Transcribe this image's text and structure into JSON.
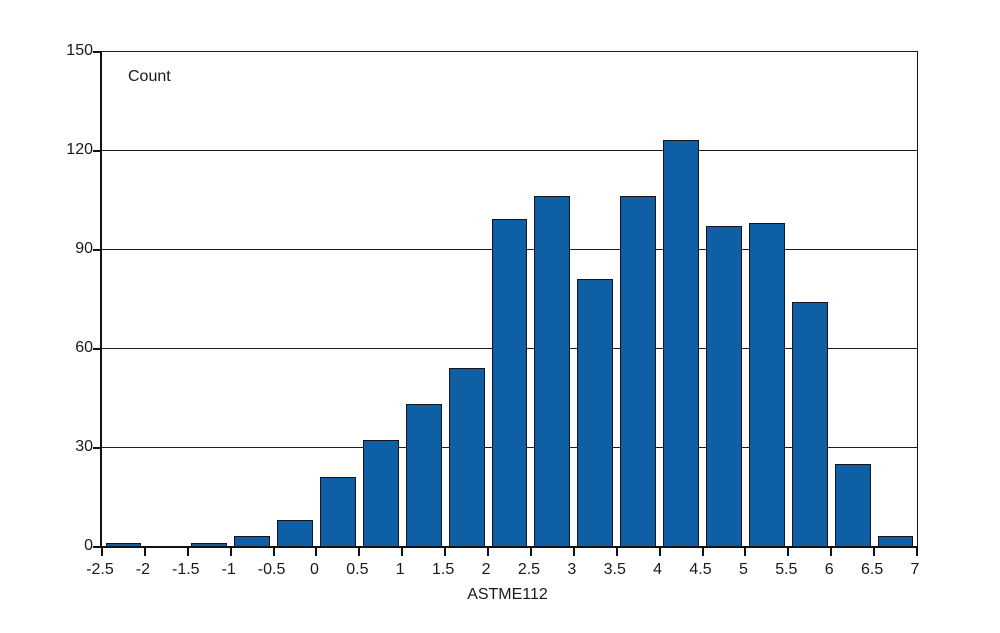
{
  "chart_data": {
    "type": "bar",
    "subtype": "histogram",
    "inner_label": "Count",
    "xlabel": "ASTME112",
    "ylabel": "Count",
    "xlim": [
      -2.5,
      7
    ],
    "ylim": [
      0,
      150
    ],
    "bin_width": 0.5,
    "categories": [
      "-2.5 to -2",
      "-2 to -1.5",
      "-1.5 to -1",
      "-1 to -0.5",
      "-0.5 to 0",
      "0 to 0.5",
      "0.5 to 1",
      "1 to 1.5",
      "1.5 to 2",
      "2 to 2.5",
      "2.5 to 3",
      "3 to 3.5",
      "3.5 to 4",
      "4 to 4.5",
      "4.5 to 5",
      "5 to 5.5",
      "5.5 to 6",
      "6 to 6.5",
      "6.5 to 7"
    ],
    "bin_left_edges": [
      -2.5,
      -2,
      -1.5,
      -1,
      -0.5,
      0,
      0.5,
      1,
      1.5,
      2,
      2.5,
      3,
      3.5,
      4,
      4.5,
      5,
      5.5,
      6,
      6.5
    ],
    "values": [
      1,
      0,
      1,
      3,
      8,
      21,
      32,
      43,
      54,
      99,
      106,
      81,
      106,
      123,
      97,
      98,
      74,
      25,
      3
    ],
    "x_tick_values": [
      -2.5,
      -2,
      -1.5,
      -1,
      -0.5,
      0,
      0.5,
      1,
      1.5,
      2,
      2.5,
      3,
      3.5,
      4,
      4.5,
      5,
      5.5,
      6,
      6.5,
      7
    ],
    "x_tick_labels": [
      "-2.5",
      "-2",
      "-1.5",
      "-1",
      "-0.5",
      "0",
      "0.5",
      "1",
      "1.5",
      "2",
      "2.5",
      "3",
      "3.5",
      "4",
      "4.5",
      "5",
      "5.5",
      "6",
      "6.5",
      "7"
    ],
    "y_tick_values": [
      0,
      30,
      60,
      90,
      120,
      150
    ],
    "y_tick_labels": [
      "0",
      "30",
      "60",
      "90",
      "120",
      "150"
    ],
    "grid": true,
    "legend": false,
    "bar_color": "#0f5fa4",
    "bar_border_color": "#14141e",
    "axis_color": "#111111",
    "background_color": "#ffffff"
  }
}
